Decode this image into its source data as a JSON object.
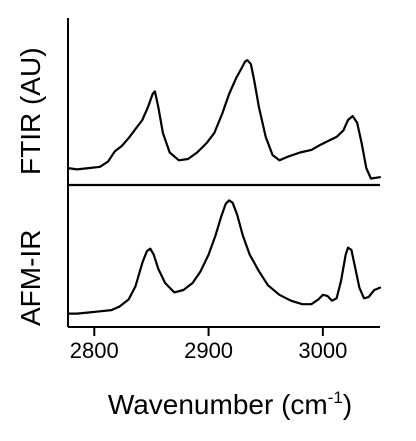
{
  "chart_data": {
    "type": "line",
    "xlabel": "Wavenumber (cm",
    "xlabel_sup": "-1",
    "xlabel_close": ")",
    "xlim": [
      2777,
      3050
    ],
    "xticks": [
      2800,
      2900,
      3000
    ],
    "xtick_labels": [
      "2800",
      "2900",
      "3000"
    ],
    "panels": [
      {
        "name": "FTIR",
        "ylabel": "FTIR  (AU)",
        "ylim": [
          0,
          1
        ],
        "x": [
          2777,
          2785,
          2795,
          2805,
          2812,
          2818,
          2824,
          2830,
          2836,
          2842,
          2847,
          2851,
          2853,
          2856,
          2860,
          2866,
          2874,
          2882,
          2890,
          2898,
          2905,
          2912,
          2918,
          2924,
          2929,
          2932,
          2934,
          2937,
          2940,
          2944,
          2950,
          2956,
          2962,
          2970,
          2980,
          2990,
          2998,
          3005,
          3012,
          3018,
          3022,
          3026,
          3030,
          3034,
          3038,
          3042,
          3050
        ],
        "y": [
          0.03,
          0.02,
          0.03,
          0.04,
          0.08,
          0.16,
          0.2,
          0.26,
          0.33,
          0.4,
          0.5,
          0.6,
          0.62,
          0.5,
          0.3,
          0.15,
          0.09,
          0.1,
          0.15,
          0.22,
          0.3,
          0.45,
          0.6,
          0.72,
          0.8,
          0.85,
          0.86,
          0.83,
          0.7,
          0.5,
          0.27,
          0.13,
          0.09,
          0.12,
          0.15,
          0.17,
          0.21,
          0.24,
          0.27,
          0.32,
          0.4,
          0.43,
          0.38,
          0.22,
          0.03,
          -0.05,
          -0.04
        ]
      },
      {
        "name": "AFM-IR",
        "ylabel": "AFM-IR",
        "ylim": [
          0,
          1
        ],
        "x": [
          2777,
          2785,
          2795,
          2805,
          2815,
          2822,
          2830,
          2836,
          2842,
          2846,
          2849,
          2852,
          2856,
          2862,
          2870,
          2878,
          2886,
          2893,
          2900,
          2906,
          2911,
          2915,
          2918,
          2921,
          2925,
          2930,
          2936,
          2944,
          2952,
          2962,
          2972,
          2982,
          2990,
          2996,
          3000,
          3004,
          3008,
          3012,
          3016,
          3020,
          3022,
          3025,
          3028,
          3032,
          3036,
          3040,
          3045,
          3050
        ],
        "y": [
          0.02,
          0.02,
          0.03,
          0.04,
          0.05,
          0.08,
          0.14,
          0.25,
          0.45,
          0.55,
          0.57,
          0.52,
          0.4,
          0.28,
          0.2,
          0.22,
          0.28,
          0.38,
          0.52,
          0.68,
          0.84,
          0.95,
          0.98,
          0.96,
          0.86,
          0.68,
          0.52,
          0.38,
          0.26,
          0.18,
          0.13,
          0.1,
          0.1,
          0.14,
          0.18,
          0.17,
          0.13,
          0.15,
          0.3,
          0.52,
          0.58,
          0.56,
          0.42,
          0.24,
          0.15,
          0.16,
          0.22,
          0.24
        ]
      }
    ],
    "grid": false,
    "line_color": "#000000"
  }
}
